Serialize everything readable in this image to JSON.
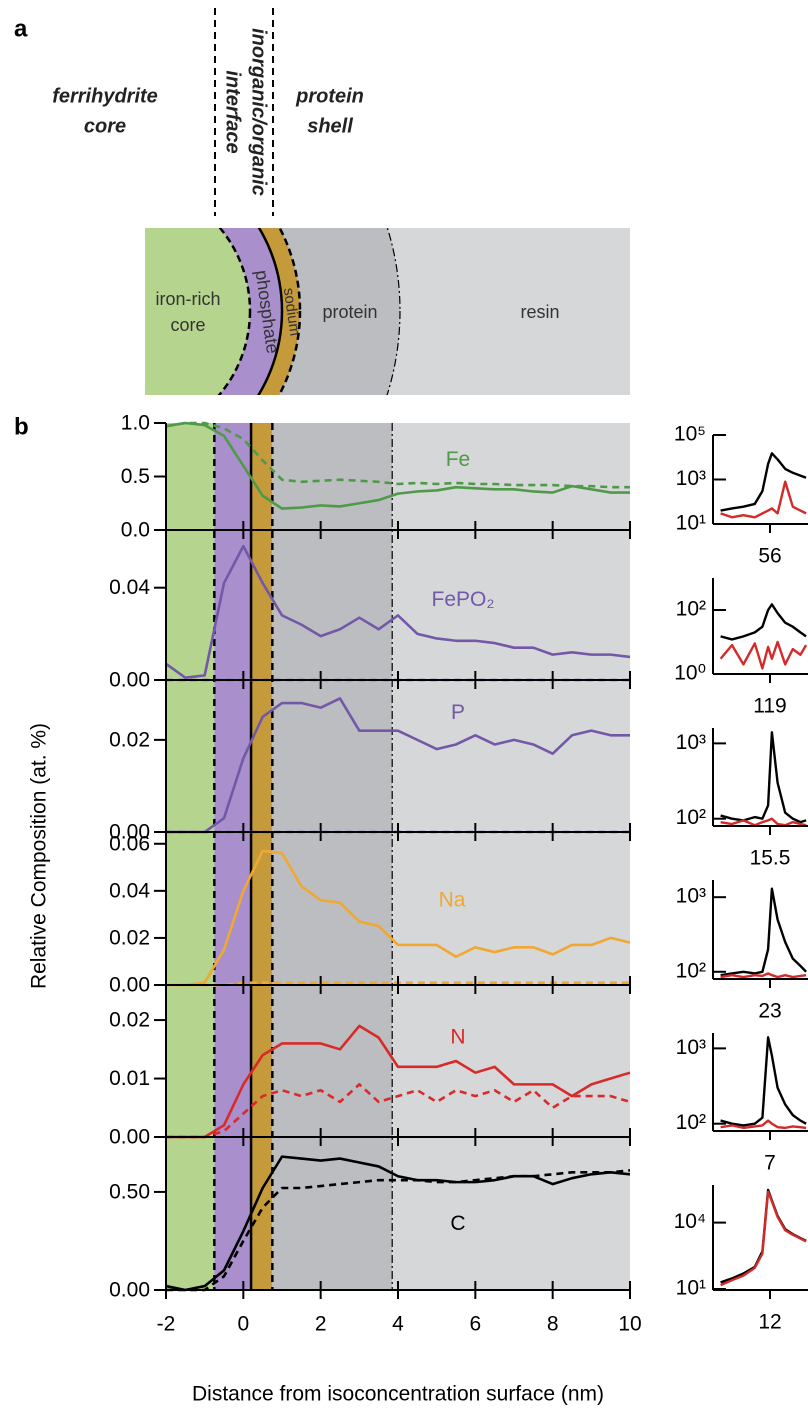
{
  "panel_a": {
    "label": "a",
    "ferrihydrite_core": [
      "ferrihydrite",
      "core"
    ],
    "interface": [
      "inorganic/organic",
      "interface"
    ],
    "protein_shell": [
      "protein",
      "shell"
    ],
    "iron_rich_core": [
      "iron-rich",
      "core"
    ],
    "phosphate": "phosphate",
    "sodium": "sodium",
    "protein": "protein",
    "resin": "resin"
  },
  "panel_b": {
    "label": "b",
    "xlabel": "Distance from isoconcentration surface (nm)",
    "ylabel": "Relative Composition (at. %)",
    "regions": [
      {
        "x0": -2,
        "x1": -0.75,
        "color": "#b5d48e"
      },
      {
        "x0": -0.75,
        "x1": 0.2,
        "color": "#a98fcc"
      },
      {
        "x0": 0.2,
        "x1": 0.75,
        "color": "#c49a3a"
      },
      {
        "x0": 0.75,
        "x1": 3.85,
        "color": "#bcbdc0"
      },
      {
        "x0": 3.85,
        "x1": 10,
        "color": "#d6d7d9"
      }
    ],
    "boundaries": [
      {
        "x": -0.75,
        "style": "dashed"
      },
      {
        "x": 0.2,
        "style": "solid"
      },
      {
        "x": 0.75,
        "style": "dashed"
      },
      {
        "x": 3.85,
        "style": "dashdot"
      }
    ]
  },
  "chart_data": [
    {
      "type": "line",
      "label": "Fe",
      "xlim": [
        -2,
        10
      ],
      "xticks": [
        -2,
        0,
        2,
        4,
        6,
        8,
        10
      ],
      "ylim": [
        0,
        1.0
      ],
      "yticks": [
        {
          "value": 0,
          "label": "0.0"
        },
        {
          "value": 0.5,
          "label": "0.5"
        },
        {
          "value": 1,
          "label": "1.0"
        }
      ],
      "x": [
        -2,
        -1.5,
        -1,
        -0.5,
        0,
        0.5,
        1,
        1.5,
        2,
        2.5,
        3,
        3.5,
        4,
        4.5,
        5,
        5.5,
        6,
        6.5,
        7,
        7.5,
        8,
        8.5,
        9,
        9.5,
        10
      ],
      "series": [
        {
          "color": "#4f9a48",
          "style": "solid",
          "values": [
            0.97,
            1.0,
            0.98,
            0.88,
            0.6,
            0.32,
            0.2,
            0.21,
            0.23,
            0.22,
            0.25,
            0.28,
            0.34,
            0.36,
            0.37,
            0.4,
            0.39,
            0.38,
            0.38,
            0.36,
            0.35,
            0.41,
            0.38,
            0.35,
            0.35
          ]
        },
        {
          "color": "#4f9a48",
          "style": "dashed",
          "values": [
            0.97,
            1.0,
            1.0,
            0.95,
            0.85,
            0.65,
            0.47,
            0.45,
            0.46,
            0.47,
            0.46,
            0.45,
            0.43,
            0.44,
            0.43,
            0.44,
            0.43,
            0.43,
            0.42,
            0.42,
            0.42,
            0.41,
            0.41,
            0.4,
            0.4
          ]
        }
      ]
    },
    {
      "type": "line",
      "label": "FePO₂",
      "xlim": [
        -2,
        10
      ],
      "xticks": [
        -2,
        0,
        2,
        4,
        6,
        8,
        10
      ],
      "ylim": [
        0,
        0.065
      ],
      "yticks": [
        {
          "value": 0,
          "label": "0.00"
        },
        0.04
      ],
      "x": [
        -2,
        -1.5,
        -1,
        -0.5,
        0,
        0.5,
        1,
        1.5,
        2,
        2.5,
        3,
        3.5,
        4,
        4.5,
        5,
        5.5,
        6,
        6.5,
        7,
        7.5,
        8,
        8.5,
        9,
        9.5,
        10
      ],
      "series": [
        {
          "color": "#7458a8",
          "style": "solid",
          "values": [
            0.007,
            0.001,
            0.002,
            0.042,
            0.058,
            0.042,
            0.028,
            0.024,
            0.019,
            0.022,
            0.027,
            0.022,
            0.028,
            0.02,
            0.018,
            0.017,
            0.017,
            0.016,
            0.014,
            0.014,
            0.011,
            0.012,
            0.011,
            0.011,
            0.01
          ]
        },
        {
          "color": "#7458a8",
          "style": "dashed",
          "values": [
            0,
            0,
            0,
            0,
            0,
            0,
            0,
            0,
            0,
            0,
            0,
            0,
            0,
            0,
            0,
            0,
            0,
            0,
            0,
            0,
            0,
            0,
            0,
            0,
            0
          ]
        }
      ]
    },
    {
      "type": "line",
      "label": "P",
      "xlim": [
        -2,
        10
      ],
      "xticks": [
        -2,
        0,
        2,
        4,
        6,
        8,
        10
      ],
      "ylim": [
        0,
        0.033
      ],
      "yticks": [
        {
          "value": 0,
          "label": "0.00"
        },
        0.02
      ],
      "x": [
        -2,
        -1.5,
        -1,
        -0.5,
        0,
        0.5,
        1,
        1.5,
        2,
        2.5,
        3,
        3.5,
        4,
        4.5,
        5,
        5.5,
        6,
        6.5,
        7,
        7.5,
        8,
        8.5,
        9,
        9.5,
        10
      ],
      "series": [
        {
          "color": "#7458a8",
          "style": "solid",
          "values": [
            0,
            0,
            0,
            0.003,
            0.016,
            0.025,
            0.028,
            0.028,
            0.027,
            0.029,
            0.022,
            0.022,
            0.022,
            0.02,
            0.018,
            0.019,
            0.021,
            0.019,
            0.02,
            0.019,
            0.017,
            0.021,
            0.022,
            0.021,
            0.021
          ]
        },
        {
          "color": "#7458a8",
          "style": "dashed",
          "values": [
            0,
            0,
            0,
            0,
            0,
            0,
            0,
            0,
            0,
            0,
            0,
            0,
            0,
            0,
            0,
            0,
            0,
            0,
            0,
            0,
            0,
            0,
            0,
            0,
            0
          ]
        }
      ]
    },
    {
      "type": "line",
      "label": "Na",
      "xlim": [
        -2,
        10
      ],
      "xticks": [
        -2,
        0,
        2,
        4,
        6,
        8,
        10
      ],
      "ylim": [
        0,
        0.065
      ],
      "yticks": [
        {
          "value": 0,
          "label": "0.00"
        },
        0.02,
        0.04,
        0.06
      ],
      "x": [
        -2,
        -1.5,
        -1,
        -0.5,
        0,
        0.5,
        1,
        1.5,
        2,
        2.5,
        3,
        3.5,
        4,
        4.5,
        5,
        5.5,
        6,
        6.5,
        7,
        7.5,
        8,
        8.5,
        9,
        9.5,
        10
      ],
      "series": [
        {
          "color": "#f0a830",
          "style": "solid",
          "values": [
            0,
            0,
            0.001,
            0.015,
            0.04,
            0.057,
            0.056,
            0.042,
            0.036,
            0.035,
            0.027,
            0.025,
            0.017,
            0.017,
            0.017,
            0.012,
            0.016,
            0.014,
            0.016,
            0.016,
            0.013,
            0.017,
            0.017,
            0.02,
            0.018
          ]
        },
        {
          "color": "#f0a830",
          "style": "dashed",
          "values": [
            0,
            0,
            0,
            0,
            0.001,
            0.001,
            0.001,
            0.001,
            0.001,
            0.001,
            0.001,
            0.001,
            0.001,
            0.001,
            0.001,
            0.001,
            0.001,
            0.001,
            0.001,
            0.001,
            0.001,
            0.001,
            0.001,
            0.001,
            0.001
          ]
        }
      ]
    },
    {
      "type": "line",
      "label": "N",
      "xlim": [
        -2,
        10
      ],
      "xticks": [
        -2,
        0,
        2,
        4,
        6,
        8,
        10
      ],
      "ylim": [
        0,
        0.026
      ],
      "yticks": [
        {
          "value": 0,
          "label": "0.00"
        },
        0.01,
        0.02
      ],
      "x": [
        -2,
        -1.5,
        -1,
        -0.5,
        0,
        0.5,
        1,
        1.5,
        2,
        2.5,
        3,
        3.5,
        4,
        4.5,
        5,
        5.5,
        6,
        6.5,
        7,
        7.5,
        8,
        8.5,
        9,
        9.5,
        10
      ],
      "series": [
        {
          "color": "#d92a2a",
          "style": "solid",
          "values": [
            0,
            0,
            0,
            0.002,
            0.009,
            0.014,
            0.016,
            0.016,
            0.016,
            0.015,
            0.019,
            0.017,
            0.012,
            0.012,
            0.012,
            0.013,
            0.011,
            0.012,
            0.009,
            0.009,
            0.009,
            0.007,
            0.009,
            0.01,
            0.011
          ]
        },
        {
          "color": "#d92a2a",
          "style": "dashed",
          "values": [
            0,
            0,
            0,
            0.001,
            0.004,
            0.007,
            0.008,
            0.007,
            0.008,
            0.006,
            0.009,
            0.006,
            0.007,
            0.008,
            0.006,
            0.008,
            0.007,
            0.008,
            0.006,
            0.008,
            0.005,
            0.007,
            0.007,
            0.007,
            0.006
          ]
        }
      ]
    },
    {
      "type": "line",
      "label": "C",
      "xlim": [
        -2,
        10
      ],
      "xticks": [
        -2,
        0,
        2,
        4,
        6,
        8,
        10
      ],
      "ylim": [
        0,
        0.78
      ],
      "yticks": [
        {
          "value": 0,
          "label": "0.00"
        },
        {
          "value": 0.5,
          "label": "0.50"
        }
      ],
      "x": [
        -2,
        -1.5,
        -1,
        -0.5,
        0,
        0.5,
        1,
        1.5,
        2,
        2.5,
        3,
        3.5,
        4,
        4.5,
        5,
        5.5,
        6,
        6.5,
        7,
        7.5,
        8,
        8.5,
        9,
        9.5,
        10
      ],
      "series": [
        {
          "color": "#000000",
          "style": "solid",
          "values": [
            0.02,
            0,
            0.02,
            0.1,
            0.3,
            0.52,
            0.68,
            0.67,
            0.66,
            0.67,
            0.65,
            0.63,
            0.58,
            0.56,
            0.56,
            0.55,
            0.55,
            0.56,
            0.58,
            0.58,
            0.54,
            0.57,
            0.59,
            0.6,
            0.59
          ]
        },
        {
          "color": "#000000",
          "style": "dashed",
          "values": [
            0,
            0,
            0,
            0.07,
            0.25,
            0.42,
            0.52,
            0.52,
            0.53,
            0.54,
            0.55,
            0.56,
            0.56,
            0.56,
            0.55,
            0.55,
            0.56,
            0.57,
            0.58,
            0.58,
            0.59,
            0.6,
            0.6,
            0.6,
            0.61
          ]
        }
      ]
    },
    {
      "type": "line",
      "log_y": true,
      "xlim": [
        54.5,
        57
      ],
      "xticks": [
        56
      ],
      "ylim": [
        10,
        100000
      ],
      "yticks": [
        {
          "value": 10,
          "label": "10¹"
        },
        {
          "value": 1000,
          "label": "10³"
        },
        {
          "value": 100000,
          "label": "10⁵"
        }
      ],
      "x": [
        54.7,
        55.0,
        55.3,
        55.6,
        55.8,
        55.95,
        56.05,
        56.2,
        56.4,
        56.6,
        56.8,
        56.95
      ],
      "series": [
        {
          "color": "#000000",
          "values": [
            40,
            50,
            60,
            80,
            300,
            5000,
            15000,
            8000,
            3000,
            2000,
            1500,
            1200
          ]
        },
        {
          "color": "#d42a2a",
          "values": [
            30,
            20,
            25,
            20,
            30,
            40,
            50,
            30,
            800,
            60,
            40,
            30
          ]
        }
      ]
    },
    {
      "type": "line",
      "log_y": true,
      "xlim": [
        117.5,
        120
      ],
      "xticks": [
        119
      ],
      "ylim": [
        1,
        1000
      ],
      "yticks": [
        {
          "value": 1,
          "label": "10⁰"
        },
        {
          "value": 100,
          "label": "10²"
        }
      ],
      "x": [
        117.7,
        118.0,
        118.3,
        118.6,
        118.8,
        118.95,
        119.05,
        119.2,
        119.4,
        119.6,
        119.8,
        119.95
      ],
      "series": [
        {
          "color": "#000000",
          "values": [
            15,
            12,
            15,
            20,
            30,
            100,
            150,
            80,
            40,
            30,
            20,
            15
          ]
        },
        {
          "color": "#d42a2a",
          "values": [
            3,
            8,
            2,
            9,
            1.5,
            7,
            3,
            10,
            2,
            6,
            4,
            8
          ]
        }
      ]
    },
    {
      "type": "line",
      "log_y": true,
      "xlim": [
        14,
        16.5
      ],
      "xticks": [
        15.5
      ],
      "ylim": [
        80,
        1600
      ],
      "yticks": [
        {
          "value": 100,
          "label": "10²"
        },
        {
          "value": 1000,
          "label": "10³"
        }
      ],
      "x": [
        14.2,
        14.5,
        14.8,
        15.1,
        15.3,
        15.45,
        15.55,
        15.7,
        15.9,
        16.1,
        16.3,
        16.45
      ],
      "series": [
        {
          "color": "#000000",
          "values": [
            110,
            100,
            95,
            105,
            100,
            150,
            1400,
            300,
            120,
            100,
            90,
            95
          ]
        },
        {
          "color": "#d42a2a",
          "values": [
            90,
            85,
            95,
            82,
            90,
            95,
            100,
            85,
            82,
            90,
            85,
            82
          ]
        }
      ]
    },
    {
      "type": "line",
      "log_y": true,
      "xlim": [
        21.5,
        24
      ],
      "xticks": [
        23
      ],
      "ylim": [
        80,
        1700
      ],
      "yticks": [
        {
          "value": 100,
          "label": "10²"
        },
        {
          "value": 1000,
          "label": "10³"
        }
      ],
      "x": [
        21.7,
        22.0,
        22.3,
        22.6,
        22.8,
        22.95,
        23.05,
        23.2,
        23.4,
        23.6,
        23.8,
        23.95
      ],
      "series": [
        {
          "color": "#000000",
          "values": [
            90,
            95,
            100,
            95,
            100,
            200,
            1300,
            500,
            250,
            150,
            120,
            100
          ]
        },
        {
          "color": "#d42a2a",
          "values": [
            85,
            90,
            85,
            90,
            88,
            95,
            90,
            85,
            90,
            85,
            88,
            90
          ]
        }
      ]
    },
    {
      "type": "line",
      "log_y": true,
      "xlim": [
        5.5,
        8
      ],
      "xticks": [
        7
      ],
      "ylim": [
        80,
        1600
      ],
      "yticks": [
        {
          "value": 100,
          "label": "10²"
        },
        {
          "value": 1000,
          "label": "10³"
        }
      ],
      "x": [
        5.7,
        6.0,
        6.3,
        6.6,
        6.8,
        6.95,
        7.05,
        7.2,
        7.4,
        7.6,
        7.8,
        7.95
      ],
      "series": [
        {
          "color": "#000000",
          "values": [
            110,
            100,
            95,
            100,
            120,
            1400,
            800,
            300,
            180,
            130,
            110,
            100
          ]
        },
        {
          "color": "#d42a2a",
          "values": [
            90,
            95,
            88,
            92,
            95,
            110,
            100,
            90,
            88,
            92,
            90,
            88
          ]
        }
      ]
    },
    {
      "type": "line",
      "log_y": true,
      "xlim": [
        10.5,
        13
      ],
      "xticks": [
        12
      ],
      "ylim": [
        9,
        500000
      ],
      "yticks": [
        {
          "value": 10,
          "label": "10¹"
        },
        {
          "value": 10000,
          "label": "10⁴"
        }
      ],
      "x": [
        10.7,
        11.0,
        11.3,
        11.6,
        11.8,
        11.95,
        12.05,
        12.2,
        12.4,
        12.6,
        12.8,
        12.95
      ],
      "series": [
        {
          "color": "#000000",
          "values": [
            20,
            30,
            50,
            100,
            500,
            300000,
            100000,
            20000,
            5000,
            3000,
            2000,
            1500
          ]
        },
        {
          "color": "#d42a2a",
          "values": [
            15,
            25,
            40,
            90,
            400,
            250000,
            90000,
            18000,
            4500,
            2800,
            1900,
            1400
          ]
        }
      ]
    }
  ]
}
